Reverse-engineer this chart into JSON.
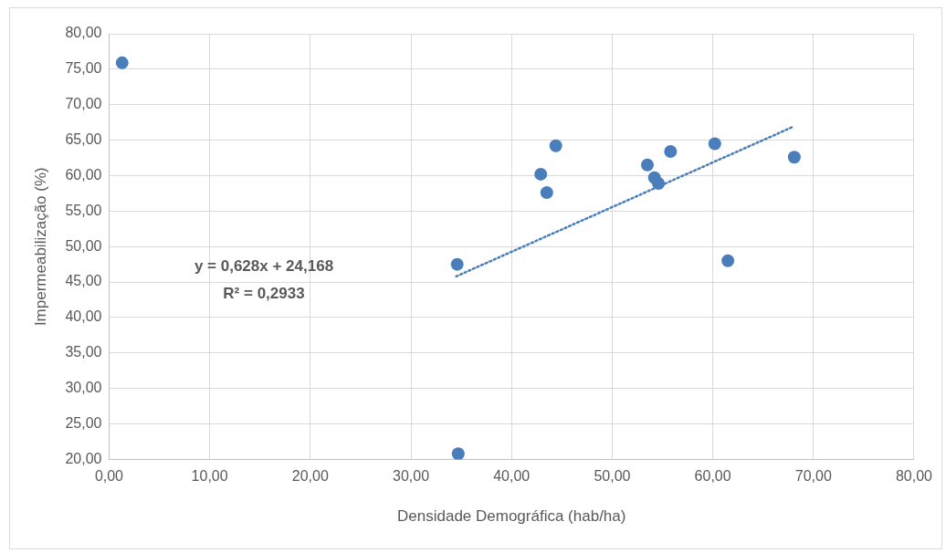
{
  "chart_data": {
    "type": "scatter",
    "xlabel": "Densidade Demográfica (hab/ha)",
    "ylabel": "Impermeabilização (%)",
    "xlim": [
      0,
      80
    ],
    "xticks": [
      {
        "value": 0,
        "label": "0,00"
      },
      {
        "value": 10,
        "label": "10,00"
      },
      {
        "value": 20,
        "label": "20,00"
      },
      {
        "value": 30,
        "label": "30,00"
      },
      {
        "value": 40,
        "label": "40,00"
      },
      {
        "value": 50,
        "label": "50,00"
      },
      {
        "value": 60,
        "label": "60,00"
      },
      {
        "value": 70,
        "label": "70,00"
      },
      {
        "value": 80,
        "label": "80,00"
      }
    ],
    "ylim": [
      20,
      80
    ],
    "yticks": [
      {
        "value": 20,
        "label": "20,00"
      },
      {
        "value": 25,
        "label": "25,00"
      },
      {
        "value": 30,
        "label": "30,00"
      },
      {
        "value": 35,
        "label": "35,00"
      },
      {
        "value": 40,
        "label": "40,00"
      },
      {
        "value": 45,
        "label": "45,00"
      },
      {
        "value": 50,
        "label": "50,00"
      },
      {
        "value": 55,
        "label": "55,00"
      },
      {
        "value": 60,
        "label": "60,00"
      },
      {
        "value": 65,
        "label": "65,00"
      },
      {
        "value": 70,
        "label": "70,00"
      },
      {
        "value": 75,
        "label": "75,00"
      },
      {
        "value": 80,
        "label": "80,00"
      }
    ],
    "grid": true,
    "legend": false,
    "marker": "circle",
    "series": [
      {
        "type": "scatter",
        "color": "#4a7ebb",
        "x": [
          1.3,
          34.6,
          34.7,
          42.9,
          43.5,
          44.4,
          53.5,
          54.2,
          54.6,
          55.8,
          60.2,
          61.5,
          68.1
        ],
        "values": [
          75.9,
          47.5,
          20.8,
          60.2,
          57.6,
          64.2,
          61.5,
          59.7,
          58.9,
          63.4,
          64.5,
          48.0,
          62.6
        ]
      },
      {
        "type": "line",
        "color": "#4a7ebb",
        "line_style": "dotted",
        "marker": "none",
        "x": [
          34.5,
          68.0
        ],
        "values": [
          45.8,
          66.9
        ]
      }
    ],
    "annotations": [
      "y = 0,628x + 24,168",
      "R² = 0,2933"
    ]
  }
}
